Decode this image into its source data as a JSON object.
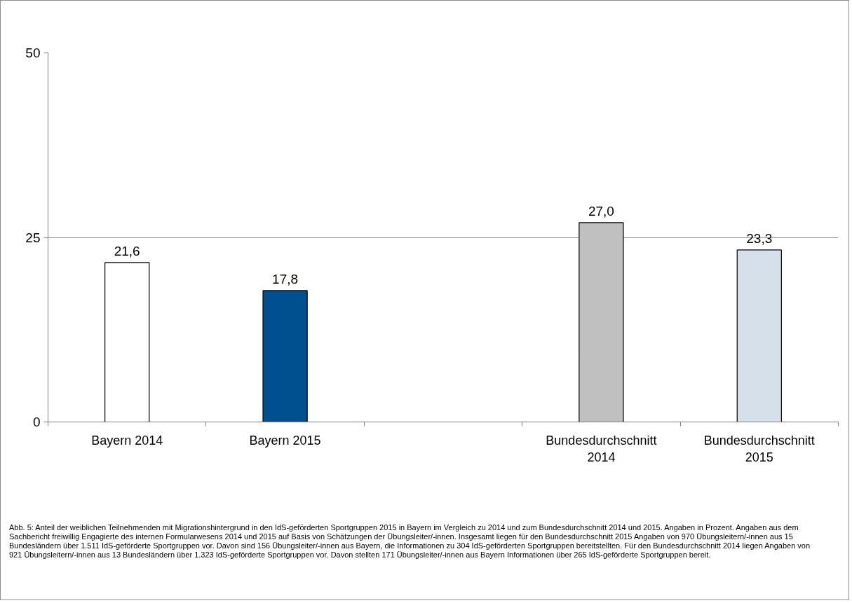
{
  "chart_data": {
    "type": "bar",
    "categories": [
      "Bayern 2014",
      "Bayern 2015",
      null,
      "Bundesdurchschnitt 2014",
      "Bundesdurchschnitt 2015"
    ],
    "values": [
      21.6,
      17.8,
      null,
      27.0,
      23.3
    ],
    "colors": [
      "#ffffff",
      "#00508f",
      "#c0c0c0",
      "#c0c0c0",
      "#d5e0eb"
    ],
    "value_labels": [
      "21,6",
      "17,8",
      null,
      "27,0",
      "23,3"
    ],
    "ylim": [
      0,
      50
    ],
    "yticks": [
      0,
      25,
      50
    ],
    "grid": "y",
    "annotations": [
      "Abb. 5: Anteil der weiblichen Teilnehmenden mit Migrationshintergrund in den IdS-geförderten Sportgruppen 2015 in Bayern im Vergleich zu 2014 und zum Bundesdurchschnitt 2014 und 2015. Angaben in Prozent. Angaben aus dem Sachbericht freiwillig Engagierte des internen Formularwesens 2014 und 2015 auf Basis von Schätzungen der Übungsleiter/-innen. Insgesamt liegen für den Bundesdurchschnitt 2015 Angaben von 970 Übungsleitern/-innen aus 15 Bundesländern über 1.511 IdS-geförderte Sportgruppen vor. Davon sind 156 Übungsleiter/-innen aus Bayern, die Informationen zu 304 IdS-geförderten Sportgruppen bereitstellten. Für den Bundesdurchschnitt 2014 liegen Angaben von 921 Übungsleitern/-innen aus 13 Bundesländern über 1.323 IdS-geförderte Sportgruppen vor. Davon stellten 171 Übungsleiter/-innen aus Bayern Informationen über 265 IdS-geförderte Sportgruppen bereit."
    ]
  }
}
